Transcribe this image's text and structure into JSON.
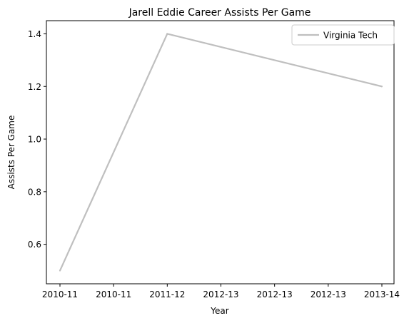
{
  "chart_data": {
    "type": "line",
    "title": "Jarell Eddie Career Assists Per Game",
    "xlabel": "Year",
    "ylabel": "Assists Per Game",
    "x_tick_labels": [
      "2010-11",
      "2010-11",
      "2011-12",
      "2012-13",
      "2012-13",
      "2012-13",
      "2013-14"
    ],
    "x_range": [
      0,
      3
    ],
    "ylim": [
      0.45,
      1.45
    ],
    "y_ticks": [
      0.6,
      0.8,
      1.0,
      1.2,
      1.4
    ],
    "y_tick_labels": [
      "0.6",
      "0.8",
      "1.0",
      "1.2",
      "1.4"
    ],
    "grid": false,
    "legend": "upper right",
    "categories": [
      "2010-11",
      "2011-12",
      "2013-14"
    ],
    "series": [
      {
        "name": "Virginia Tech",
        "color": "#bfbfbf",
        "x": [
          0,
          1,
          3
        ],
        "values": [
          0.5,
          1.4,
          1.2
        ]
      }
    ]
  }
}
